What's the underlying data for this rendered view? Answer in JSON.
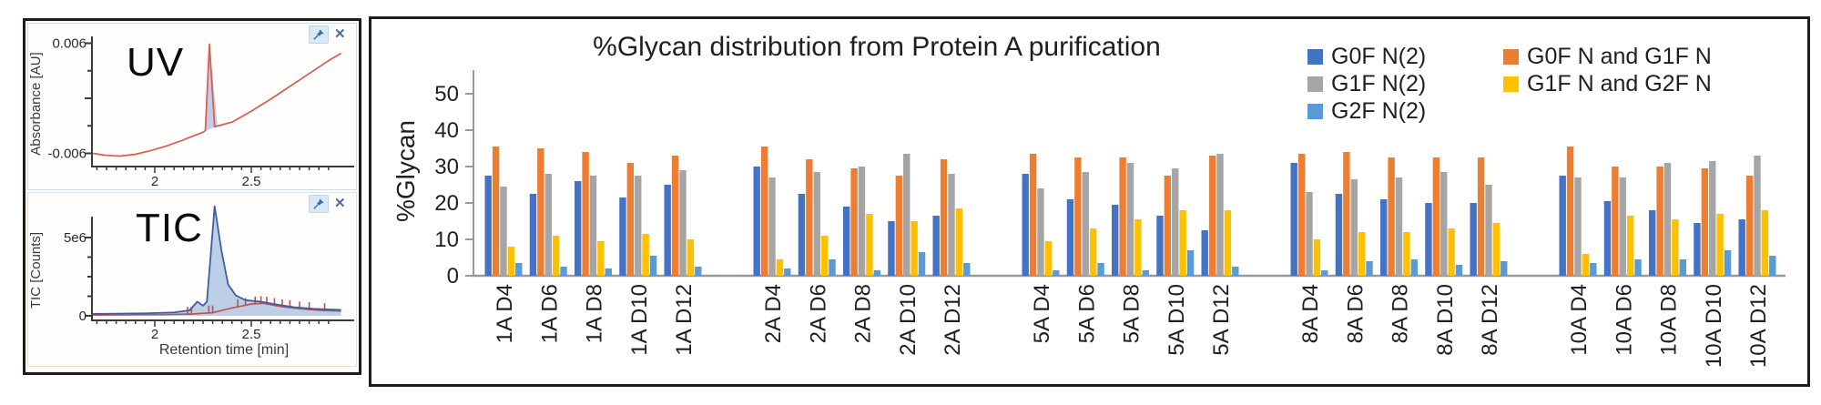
{
  "icons": {
    "pin_glyph": "pushpin",
    "close_glyph": "✕"
  },
  "colors": {
    "uv_trace": "#D85C50",
    "uv_peak_fill": "#BCC7E1",
    "tic_trace": "#3C5DA8",
    "tic_fill": "#B8CCE4",
    "tic_secondary_trace": "#C0504D",
    "axis": "#9A9A9A",
    "panel_border": "#1C1C1C"
  },
  "chart_data": [
    {
      "type": "line",
      "panel": "UV",
      "ylabel": "Absorbance [AU]",
      "xlabel": "",
      "yticks": [
        0.006,
        -0.006
      ],
      "ytick_labels": [
        "0.006",
        "-0.006"
      ],
      "xticks": [
        2,
        2.5
      ],
      "xtick_labels": [
        "2",
        "2.5"
      ],
      "xlim": [
        1.68,
        2.97
      ],
      "ylim": [
        -0.0075,
        0.0075
      ],
      "peak_retention_min": 2.28,
      "peak_fill": [
        [
          2.258,
          -0.0036
        ],
        [
          2.283,
          0.0059
        ],
        [
          2.325,
          -0.003
        ]
      ],
      "series": [
        {
          "name": "UV absorbance trace",
          "color": "#D85C50",
          "points": [
            [
              1.68,
              -0.006
            ],
            [
              1.74,
              -0.0062
            ],
            [
              1.82,
              -0.0063
            ],
            [
              1.9,
              -0.0061
            ],
            [
              1.98,
              -0.0057
            ],
            [
              2.06,
              -0.0052
            ],
            [
              2.14,
              -0.0046
            ],
            [
              2.2,
              -0.0041
            ],
            [
              2.25,
              -0.0037
            ],
            [
              2.262,
              -0.0035
            ],
            [
              2.283,
              0.0059
            ],
            [
              2.31,
              -0.0031
            ],
            [
              2.4,
              -0.0026
            ],
            [
              2.5,
              -0.0014
            ],
            [
              2.6,
              -0.0001
            ],
            [
              2.7,
              0.0013
            ],
            [
              2.8,
              0.0027
            ],
            [
              2.9,
              0.0041
            ],
            [
              2.965,
              0.0049
            ]
          ]
        }
      ]
    },
    {
      "type": "line",
      "panel": "TIC",
      "ylabel": "TIC [Counts]",
      "xlabel": "Retention time [min]",
      "yticks": [
        5,
        0
      ],
      "ytick_labels": [
        "5e6",
        "0"
      ],
      "xticks": [
        2,
        2.5
      ],
      "xtick_labels": [
        "2",
        "2.5"
      ],
      "xlim": [
        1.68,
        2.97
      ],
      "ylim_counts": [
        0,
        7800000
      ],
      "peak_retention_min": 2.31,
      "series": [
        {
          "name": "TIC trace",
          "color": "#3C5DA8",
          "fill": "#B8CCE4",
          "points_e6": [
            [
              1.68,
              0.12
            ],
            [
              1.95,
              0.16
            ],
            [
              2.1,
              0.22
            ],
            [
              2.18,
              0.35
            ],
            [
              2.22,
              0.9
            ],
            [
              2.25,
              0.65
            ],
            [
              2.27,
              0.9
            ],
            [
              2.31,
              7.0
            ],
            [
              2.345,
              4.2
            ],
            [
              2.38,
              2.0
            ],
            [
              2.42,
              1.3
            ],
            [
              2.47,
              1.0
            ],
            [
              2.55,
              0.9
            ],
            [
              2.62,
              0.75
            ],
            [
              2.72,
              0.55
            ],
            [
              2.82,
              0.45
            ],
            [
              2.965,
              0.38
            ]
          ]
        },
        {
          "name": "secondary trace",
          "color": "#C0504D",
          "points_e6": [
            [
              1.68,
              0.05
            ],
            [
              2.05,
              0.08
            ],
            [
              2.2,
              0.12
            ],
            [
              2.3,
              0.2
            ],
            [
              2.4,
              0.5
            ],
            [
              2.5,
              0.75
            ],
            [
              2.56,
              0.8
            ],
            [
              2.65,
              0.6
            ],
            [
              2.75,
              0.45
            ],
            [
              2.85,
              0.35
            ],
            [
              2.965,
              0.3
            ]
          ],
          "spike_marks_min": [
            2.17,
            2.19,
            2.28,
            2.3,
            2.43,
            2.47,
            2.52,
            2.55,
            2.58,
            2.62,
            2.66,
            2.7,
            2.75,
            2.8,
            2.88
          ]
        }
      ]
    },
    {
      "type": "bar",
      "title": "%Glycan distribution from Protein A purification",
      "ylabel": "%Glycan",
      "xlabel": "",
      "ylim": [
        0,
        50
      ],
      "yticks": [
        0,
        10,
        20,
        30,
        40,
        50
      ],
      "grid": false,
      "legend_position": "top-right",
      "categories": [
        "1A D4",
        "1A D6",
        "1A D8",
        "1A D10",
        "1A D12",
        "2A D4",
        "2A D6",
        "2A D8",
        "2A D10",
        "2A D12",
        "5A D4",
        "5A D6",
        "5A D8",
        "5A D10",
        "5A D12",
        "8A D4",
        "8A D6",
        "8A D8",
        "8A D10",
        "8A D12",
        "10A D4",
        "10A D6",
        "10A D8",
        "10A D10",
        "10A D12"
      ],
      "series": [
        {
          "name": "G0F N(2)",
          "color": "#4472C4",
          "values": [
            27.5,
            22.5,
            26,
            21.5,
            25,
            30,
            22.5,
            19,
            15,
            16.5,
            28,
            21,
            19.5,
            16.5,
            12.5,
            31,
            22.5,
            21,
            20,
            20,
            27.5,
            20.5,
            18,
            14.5,
            15.5
          ]
        },
        {
          "name": "G0F N and G1F N",
          "color": "#ED7D31",
          "values": [
            35.5,
            35,
            34,
            31,
            33,
            35.5,
            32,
            29.5,
            27.5,
            32,
            33.5,
            32.5,
            32.5,
            27.5,
            33,
            33.5,
            34,
            32.5,
            32.5,
            32.5,
            35.5,
            30,
            30,
            29.5,
            27.5
          ]
        },
        {
          "name": "G1F N(2)",
          "color": "#A5A5A5",
          "values": [
            24.5,
            28,
            27.5,
            27.5,
            29,
            27,
            28.5,
            30,
            33.5,
            28,
            24,
            28.5,
            31,
            29.5,
            33.5,
            23,
            26.5,
            27,
            28.5,
            25,
            27,
            27,
            31,
            31.5,
            33
          ]
        },
        {
          "name": "G1F N and G2F N",
          "color": "#FFC000",
          "values": [
            8,
            11,
            9.5,
            11.5,
            10,
            4.5,
            11,
            17,
            15,
            18.5,
            9.5,
            13,
            15.5,
            18,
            18,
            10,
            12,
            12,
            13,
            14.5,
            6,
            16.5,
            15.5,
            17,
            18
          ]
        },
        {
          "name": "G2F N(2)",
          "color": "#5B9BD5",
          "values": [
            3.5,
            2.5,
            2,
            5.5,
            2.5,
            2,
            4.5,
            1.5,
            6.5,
            3.5,
            1.5,
            3.5,
            1.5,
            7,
            2.5,
            1.5,
            4,
            4.5,
            3,
            4,
            3.5,
            4.5,
            4.5,
            7,
            5.5
          ]
        }
      ],
      "legend_col1": [
        "G0F N(2)",
        "G1F N(2)",
        "G2F N(2)"
      ],
      "legend_col2": [
        "G0F N and G1F N",
        "G1F N and G2F N"
      ]
    }
  ]
}
